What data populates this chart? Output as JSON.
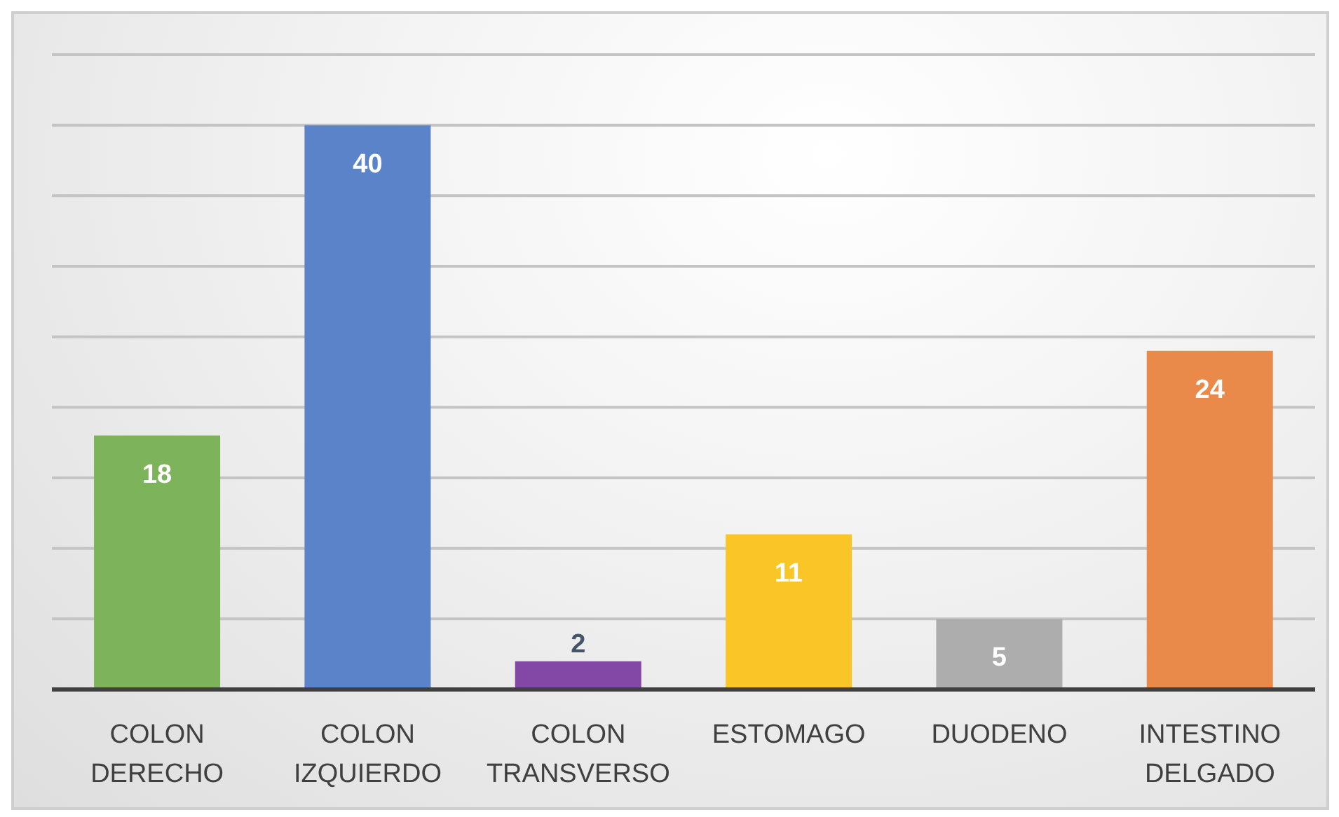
{
  "chart_data": {
    "type": "bar",
    "categories": [
      "COLON DERECHO",
      "COLON IZQUIERDO",
      "COLON TRANSVERSO",
      "ESTOMAGO",
      "DUODENO",
      "INTESTINO DELGADO"
    ],
    "values": [
      18,
      40,
      2,
      11,
      5,
      24
    ],
    "colors": [
      "#7db35a",
      "#5b83c9",
      "#8347a5",
      "#fac526",
      "#adadad",
      "#ea8a4a"
    ],
    "ylim": [
      0,
      45
    ],
    "yticks": [
      {
        "value": 0,
        "label": null
      },
      {
        "value": 5,
        "label": null
      },
      {
        "value": 10,
        "label": null
      },
      {
        "value": 15,
        "label": null
      },
      {
        "value": 20,
        "label": null
      },
      {
        "value": 25,
        "label": null
      },
      {
        "value": 30,
        "label": null
      },
      {
        "value": 35,
        "label": null
      },
      {
        "value": 40,
        "label": null
      },
      {
        "value": 45,
        "label": null
      }
    ],
    "grid": "y",
    "tick_labels": "x",
    "data_labels": true
  }
}
